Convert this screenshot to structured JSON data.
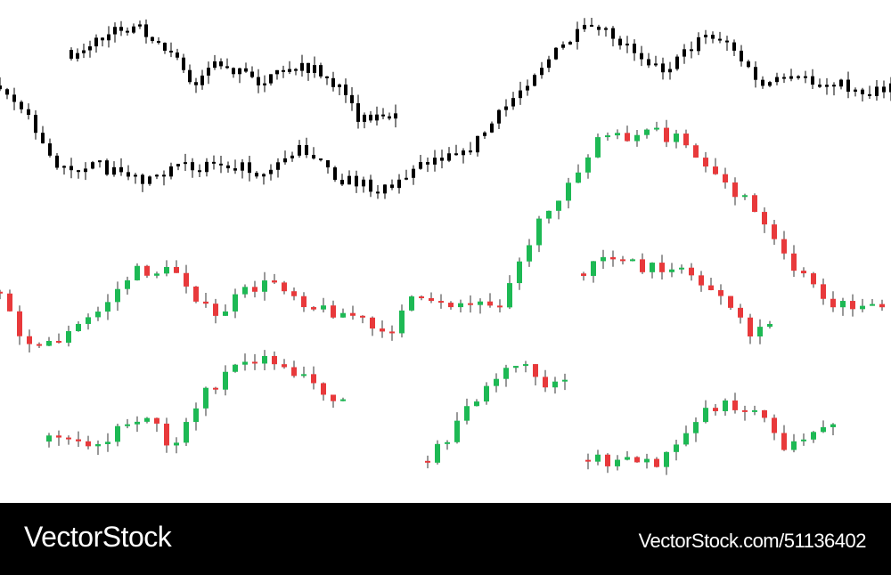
{
  "footer": {
    "brand": "VectorStock",
    "url": "VectorStock.com/51136402"
  }
}
